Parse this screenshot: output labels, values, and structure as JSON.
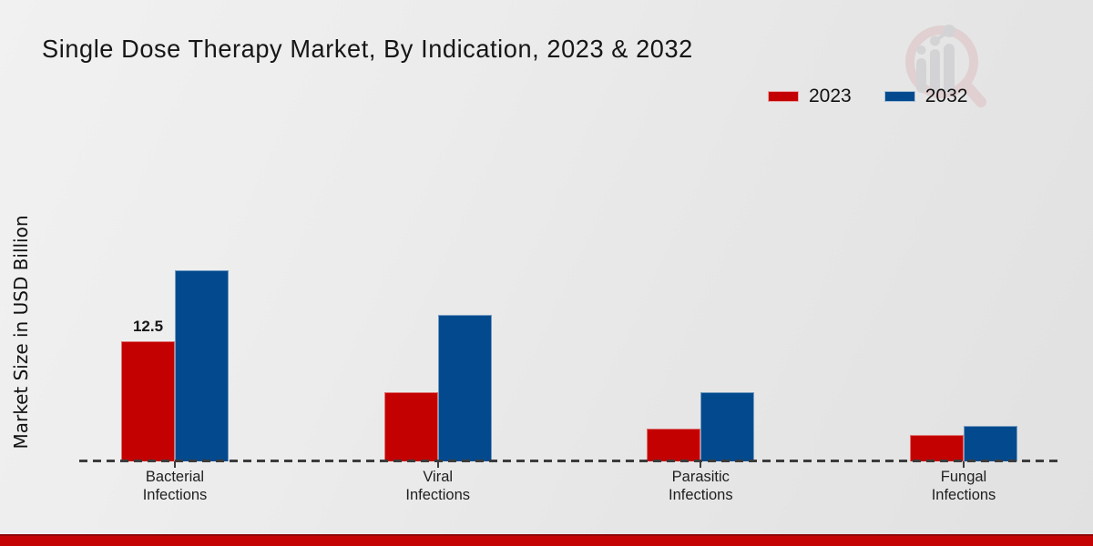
{
  "chart_data": {
    "type": "bar",
    "title": "Single Dose Therapy Market, By Indication, 2023 & 2032",
    "xlabel": "",
    "ylabel": "Market Size in USD Billion",
    "categories": [
      "Bacterial Infections",
      "Viral Infections",
      "Parasitic Infections",
      "Fungal Infections"
    ],
    "series": [
      {
        "name": "2023",
        "color": "#c40101",
        "values": [
          12.5,
          7.2,
          3.4,
          2.7
        ]
      },
      {
        "name": "2032",
        "color": "#024a8d",
        "values": [
          19.9,
          15.2,
          7.2,
          3.7
        ]
      }
    ],
    "data_labels": [
      {
        "series": "2023",
        "category": "Bacterial Infections",
        "text": "12.5"
      }
    ],
    "ylim": [
      0,
      22
    ],
    "grid": false,
    "y_axis_ticks_visible": false,
    "baseline_style": "dashed",
    "legend_position": "top-right"
  },
  "legend": {
    "items": [
      {
        "label": "2023",
        "color": "#c40101"
      },
      {
        "label": "2032",
        "color": "#024a8d"
      }
    ]
  },
  "branding": {
    "watermark_icon": "magnifier-bar-chart-logo",
    "footer_band_color": "#c40404",
    "footer_band_top_color": "#8f0606"
  }
}
